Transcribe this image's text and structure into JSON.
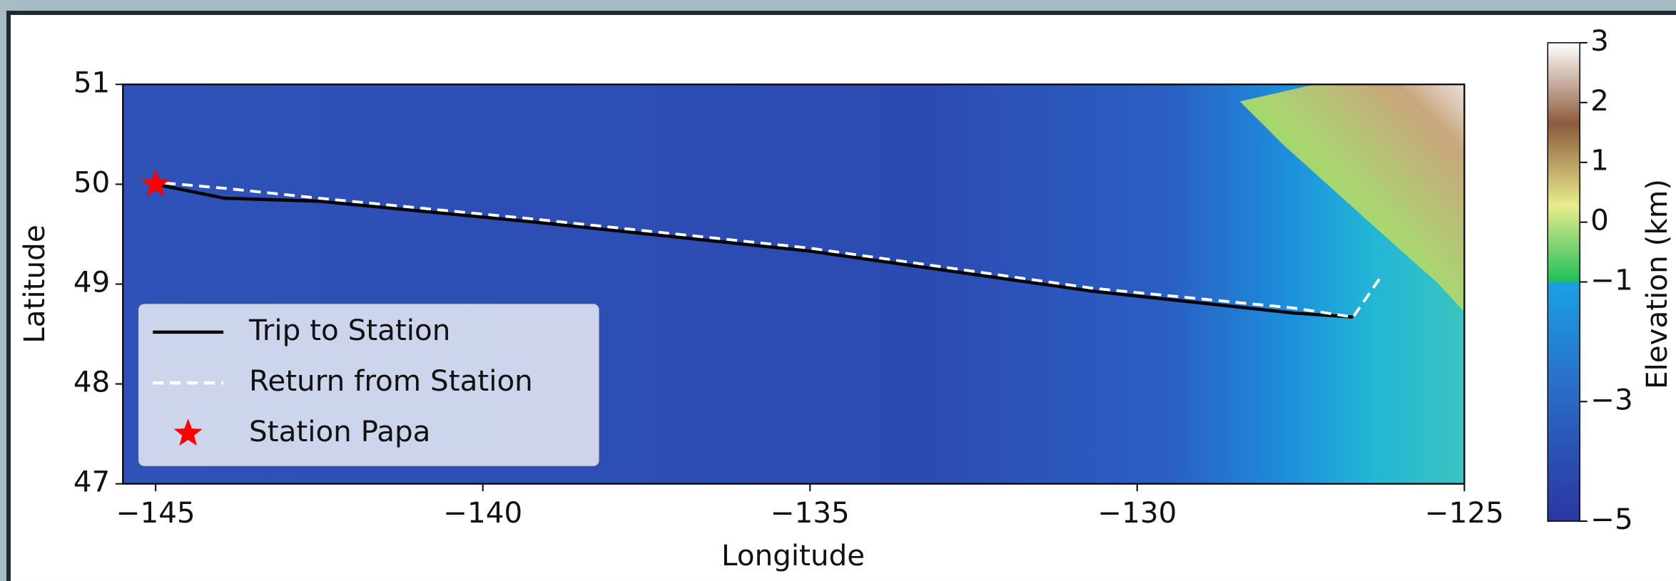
{
  "chart_data": {
    "type": "map",
    "xlabel": "Longitude",
    "ylabel": "Latitude",
    "xlim": [
      -145.5,
      -125
    ],
    "ylim": [
      47,
      51
    ],
    "xticks": [
      {
        "value": -145,
        "label": "−145"
      },
      {
        "value": -140,
        "label": "−140"
      },
      {
        "value": -135,
        "label": "−135"
      },
      {
        "value": -130,
        "label": "−130"
      },
      {
        "value": -125,
        "label": "−125"
      }
    ],
    "yticks": [
      47,
      48,
      49,
      50,
      51
    ],
    "legend_position": "lower left",
    "series": [
      {
        "name": "Trip to Station",
        "type": "line",
        "color": "#000000",
        "linestyle": "solid",
        "x": [
          -145,
          -143.95,
          -142.5,
          -139.2,
          -135,
          -130.7,
          -127.6,
          -126.7
        ],
        "y": [
          50.0,
          49.86,
          49.83,
          49.62,
          49.33,
          48.93,
          48.71,
          48.67
        ]
      },
      {
        "name": "Return from Station",
        "type": "line",
        "color": "#ffffff",
        "linestyle": "dashed",
        "x": [
          -126.3,
          -126.7,
          -127.6,
          -130.7,
          -135,
          -139.2,
          -142.5,
          -143.95,
          -145
        ],
        "y": [
          49.05,
          48.67,
          48.76,
          48.96,
          49.36,
          49.65,
          49.86,
          49.96,
          50.02
        ]
      },
      {
        "name": "Station Papa",
        "type": "scatter",
        "marker": "star",
        "color": "#ff0000",
        "x": [
          -145
        ],
        "y": [
          50.0
        ]
      }
    ],
    "colorbar": {
      "label": "Elevation (km)",
      "clim": [
        -5,
        3
      ],
      "vcenter": 0,
      "ticks": [
        3,
        2,
        1,
        0,
        {
          "value": -1,
          "label": "−1"
        },
        {
          "value": -3,
          "label": "−3"
        },
        {
          "value": -5,
          "label": "−5"
        }
      ]
    }
  }
}
